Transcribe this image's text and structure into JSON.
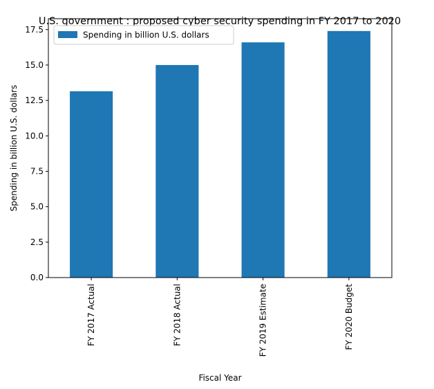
{
  "chart_data": {
    "type": "bar",
    "title": "U.S. government : proposed cyber security spending in FY 2017 to 2020",
    "xlabel": "Fiscal Year",
    "ylabel": "Spending in billion U.S. dollars",
    "categories": [
      "FY 2017 Actual",
      "FY 2018 Actual",
      "FY 2019 Estimate",
      "FY 2020 Budget"
    ],
    "series": [
      {
        "name": "Spending in billion U.S. dollars",
        "values": [
          13.15,
          15.0,
          16.6,
          17.4
        ],
        "color": "#1f77b4"
      }
    ],
    "ylim": [
      0,
      18.27
    ],
    "yticks": [
      0.0,
      2.5,
      5.0,
      7.5,
      10.0,
      12.5,
      15.0,
      17.5
    ],
    "ytick_labels": [
      "0.0",
      "2.5",
      "5.0",
      "7.5",
      "10.0",
      "12.5",
      "15.0",
      "17.5"
    ],
    "grid": false,
    "legend_position": "top-left"
  }
}
